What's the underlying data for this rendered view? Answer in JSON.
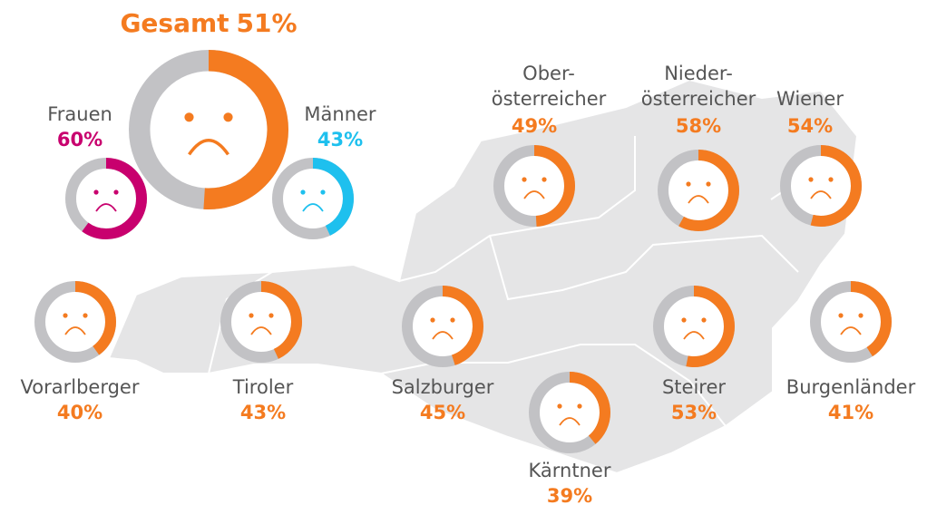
{
  "chart_data": {
    "type": "donut",
    "categories": [
      "Gesamt",
      "Frauen",
      "Männer",
      "Ober-\nösterreicher",
      "Nieder-\nösterreicher",
      "Wiener",
      "Vorarlberger",
      "Tiroler",
      "Salzburger",
      "Kärntner",
      "Steirer",
      "Burgenländer"
    ],
    "values": [
      51,
      60,
      43,
      49,
      58,
      54,
      40,
      43,
      45,
      39,
      53,
      41
    ],
    "value_labels": [
      "51%",
      "60%",
      "43%",
      "49%",
      "58%",
      "54%",
      "40%",
      "43%",
      "45%",
      "39%",
      "53%",
      "41%"
    ],
    "colors": [
      "#f47b20",
      "#c8006e",
      "#1ec0ee",
      "#f47b20",
      "#f47b20",
      "#f47b20",
      "#f47b20",
      "#f47b20",
      "#f47b20",
      "#f47b20",
      "#f47b20",
      "#f47b20"
    ],
    "track_color": "#c2c2c5"
  }
}
